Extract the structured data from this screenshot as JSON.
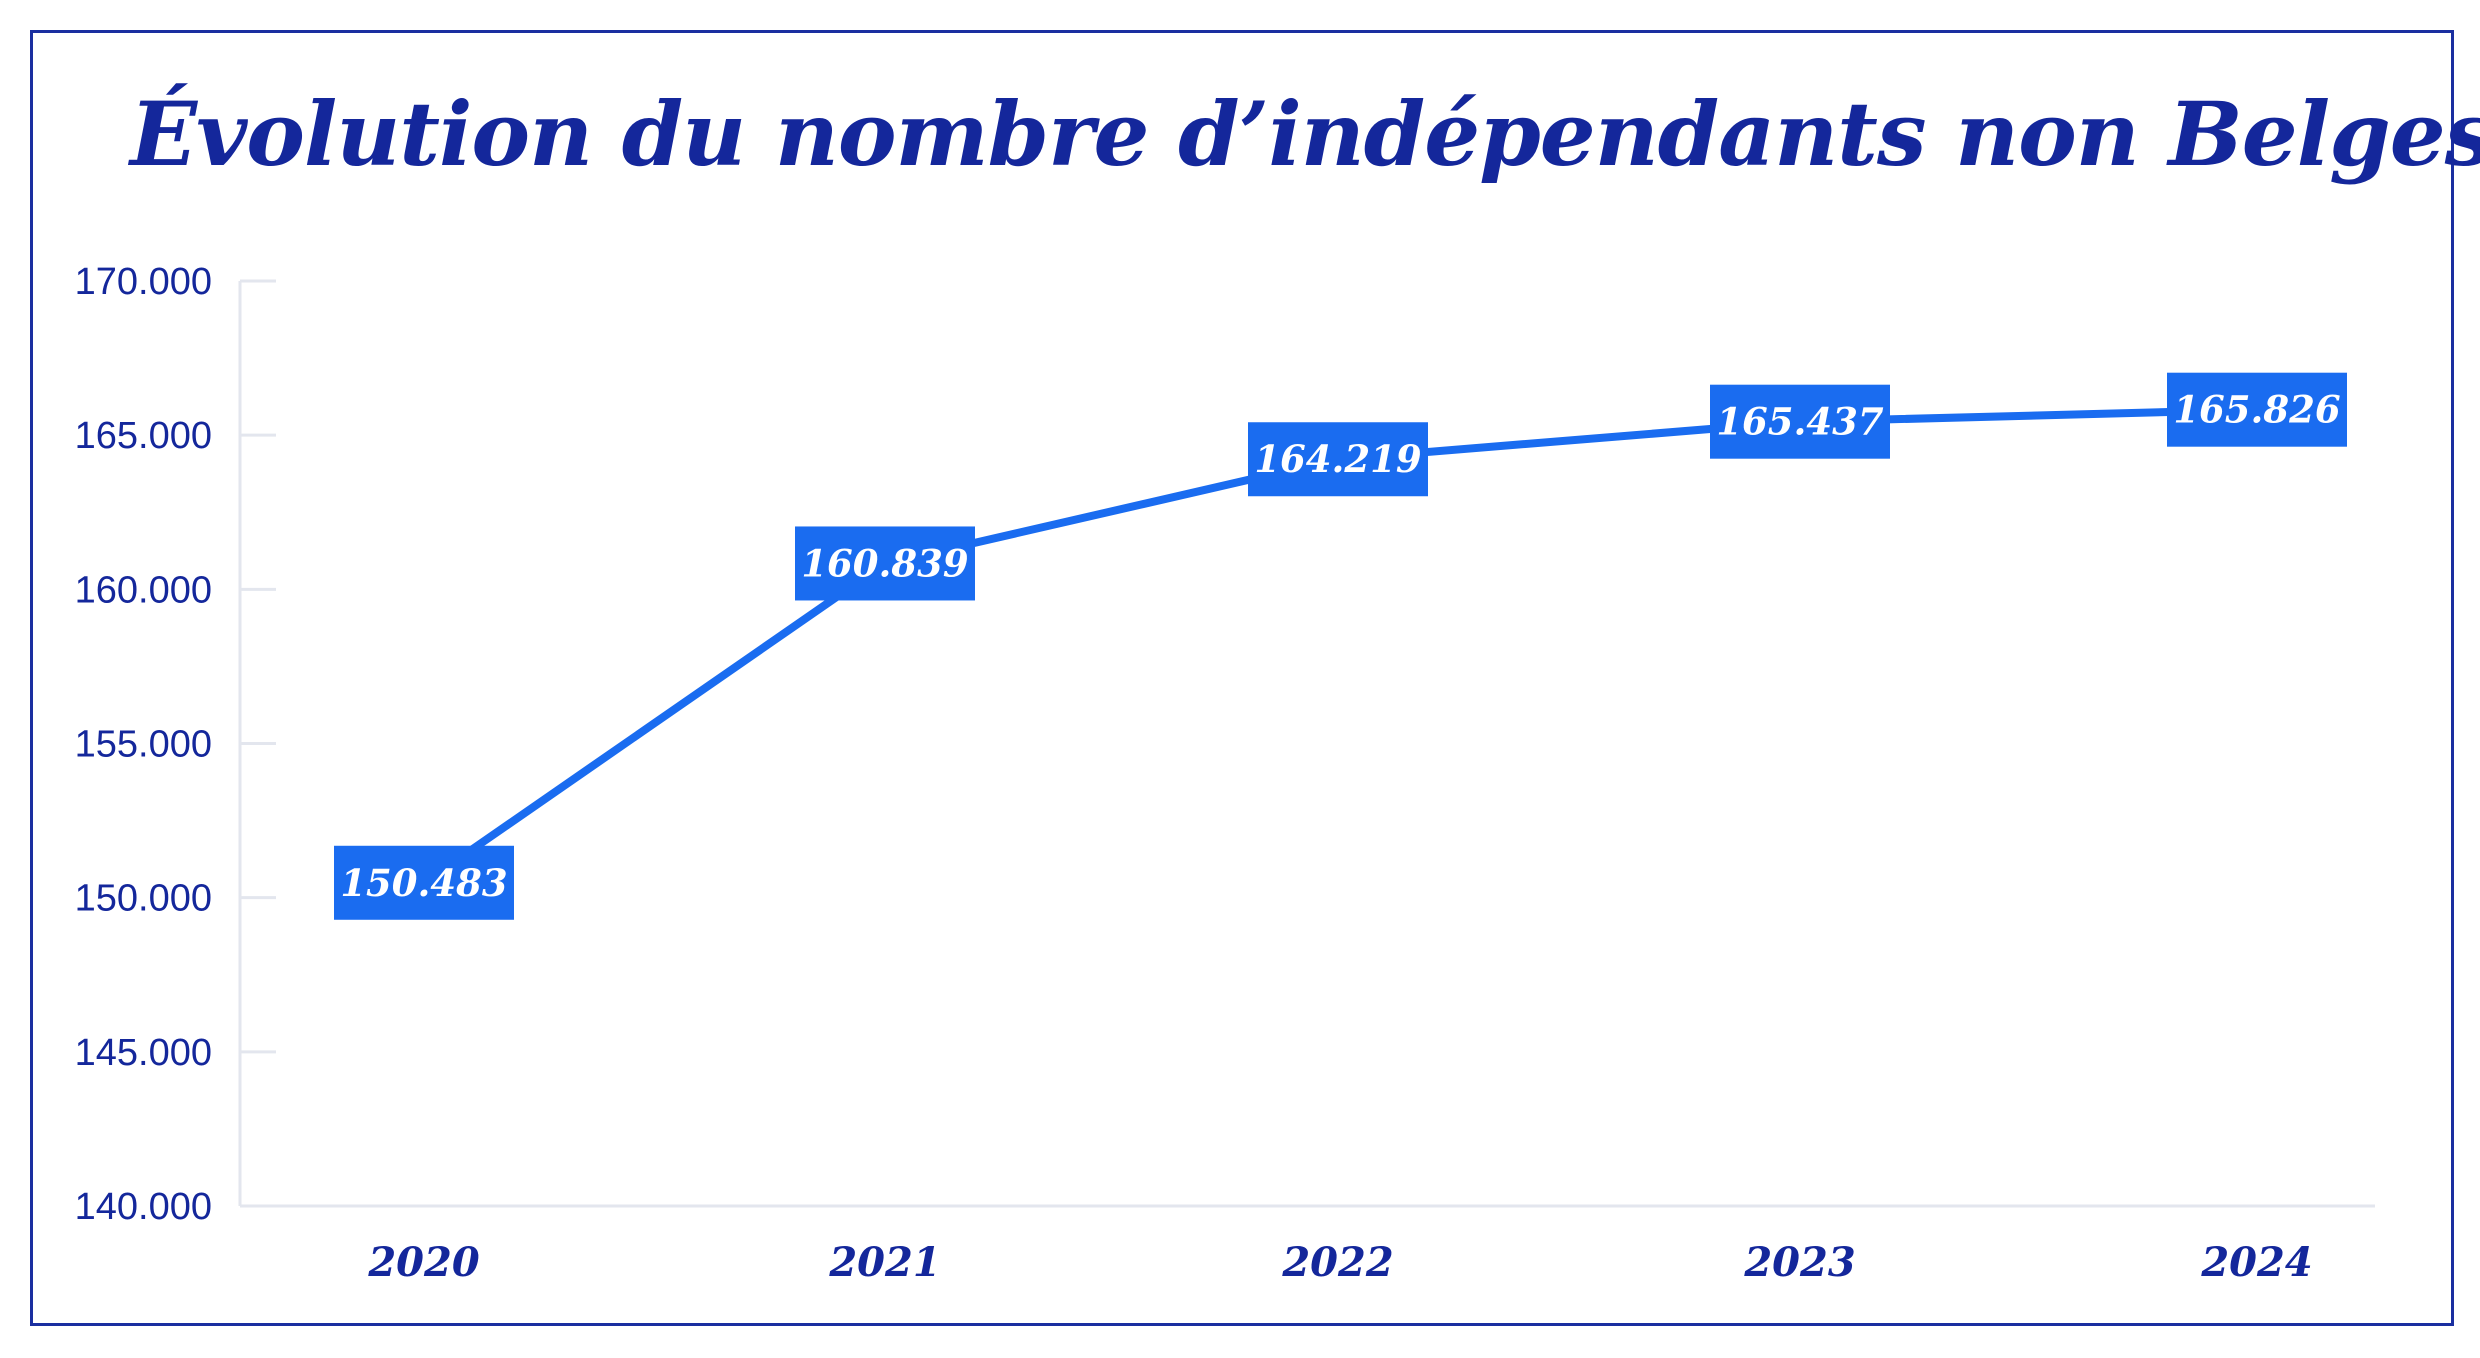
{
  "title": "Évolution du nombre d’indépendants non Belges",
  "colors": {
    "line": "#1a6cf0",
    "label_bg": "#1a6cf0",
    "text": "#14279b",
    "axis": "#e3e6ee"
  },
  "chart_data": {
    "type": "line",
    "title": "Évolution du nombre d’indépendants non Belges",
    "categories": [
      "2020",
      "2021",
      "2022",
      "2023",
      "2024"
    ],
    "values": [
      150483,
      160839,
      164219,
      165437,
      165826
    ],
    "data_labels": [
      "150.483",
      "160.839",
      "164.219",
      "165.437",
      "165.826"
    ],
    "ylim": [
      140000,
      170000
    ],
    "yticks": [
      140000,
      145000,
      150000,
      155000,
      160000,
      165000,
      170000
    ],
    "ytick_labels": [
      "140.000",
      "145.000",
      "150.000",
      "155.000",
      "160.000",
      "165.000",
      "170.000"
    ],
    "xlabel": "",
    "ylabel": "",
    "grid": false,
    "legend": "none"
  }
}
